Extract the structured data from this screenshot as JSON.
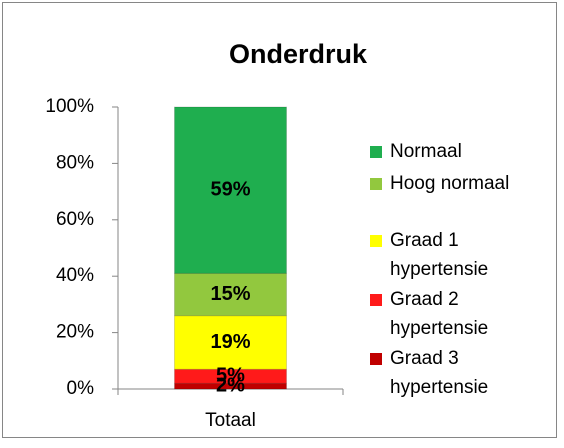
{
  "chart_data": {
    "type": "bar",
    "stacked": true,
    "title": "Onderdruk",
    "categories": [
      "Totaal"
    ],
    "series": [
      {
        "name": "Normaal",
        "color": "#1fae4f",
        "values": [
          59
        ],
        "value_labels": [
          "59%"
        ]
      },
      {
        "name": "Hoog normaal",
        "color": "#92c83e",
        "values": [
          15
        ],
        "value_labels": [
          "15%"
        ]
      },
      {
        "name": "Graad 1 hypertensie",
        "color": "#ffff00",
        "values": [
          19
        ],
        "value_labels": [
          "19%"
        ]
      },
      {
        "name": "Graad 2 hypertensie",
        "color": "#ff1a1a",
        "values": [
          5
        ],
        "value_labels": [
          "5%"
        ]
      },
      {
        "name": "Graad 3 hypertensie",
        "color": "#c00000",
        "values": [
          2
        ],
        "value_labels": [
          "2%"
        ]
      }
    ],
    "ylim": [
      0,
      100
    ],
    "yticks": [
      {
        "value": 0,
        "label": "0%"
      },
      {
        "value": 20,
        "label": "20%"
      },
      {
        "value": 40,
        "label": "40%"
      },
      {
        "value": 60,
        "label": "60%"
      },
      {
        "value": 80,
        "label": "80%"
      },
      {
        "value": 100,
        "label": "100%"
      }
    ],
    "grid": false,
    "legend": "right"
  }
}
